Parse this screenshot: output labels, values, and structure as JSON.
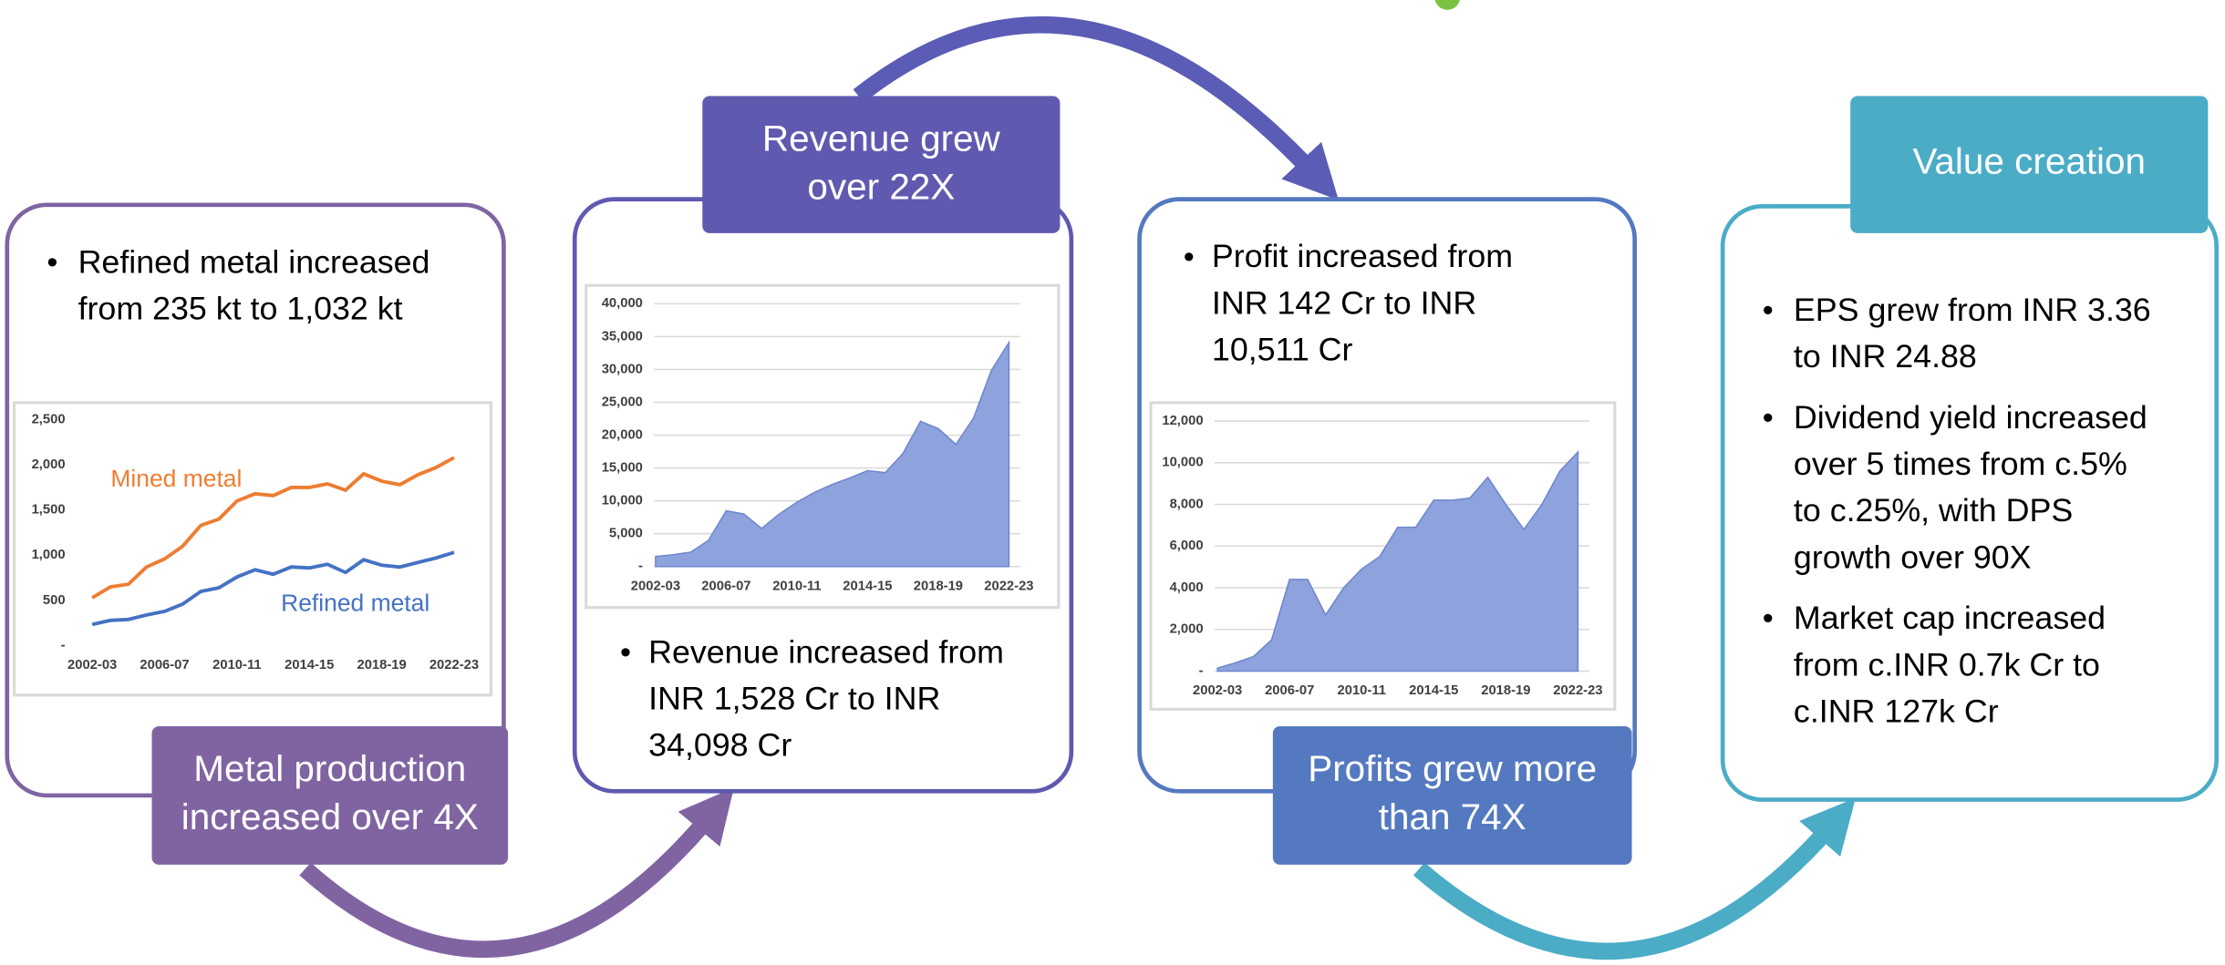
{
  "panels": [
    {
      "label": [
        "Metal production",
        "increased over 4X"
      ],
      "bullets": [
        [
          "Refined metal increased",
          "from 235 kt to 1,032 kt"
        ]
      ]
    },
    {
      "label": [
        "Revenue grew",
        "over 22X"
      ],
      "bullets": [
        [
          "Revenue increased from",
          "INR 1,528 Cr to INR",
          "34,098 Cr"
        ]
      ]
    },
    {
      "label": [
        "Profits grew more",
        "than 74X"
      ],
      "bullets": [
        [
          "Profit increased from",
          "INR 142 Cr to INR",
          "10,511 Cr"
        ]
      ]
    },
    {
      "label": [
        "Value creation"
      ],
      "bullets": [
        [
          "EPS grew from INR 3.36",
          "to INR 24.88"
        ],
        [
          "Dividend yield increased",
          "over 5 times from c.5%",
          "to c.25%, with DPS",
          "growth over 90X"
        ],
        [
          "Market cap increased",
          "from c.INR 0.7k Cr to",
          "c.INR 127k Cr"
        ]
      ]
    }
  ],
  "chart_data": [
    {
      "type": "line",
      "grid": false,
      "categories": [
        "2002-03",
        null,
        null,
        null,
        "2006-07",
        null,
        null,
        null,
        "2010-11",
        null,
        null,
        null,
        "2014-15",
        null,
        null,
        null,
        "2018-19",
        null,
        null,
        null,
        "2022-23"
      ],
      "series": [
        {
          "name": "Mined metal",
          "color": "#ed7d31",
          "values": [
            530,
            650,
            680,
            870,
            960,
            1100,
            1330,
            1400,
            1600,
            1680,
            1660,
            1750,
            1750,
            1790,
            1720,
            1900,
            1820,
            1780,
            1890,
            1970,
            2080
          ]
        },
        {
          "name": "Refined metal",
          "color": "#4472c4",
          "values": [
            235,
            280,
            290,
            340,
            380,
            460,
            600,
            640,
            760,
            840,
            790,
            870,
            860,
            900,
            810,
            950,
            890,
            870,
            920,
            970,
            1032
          ]
        }
      ],
      "ylim": [
        0,
        2500
      ],
      "yticks": [
        {
          "value": 0,
          "label": "-"
        },
        500,
        {
          "value": 1000,
          "label": "1,000"
        },
        {
          "value": 1500,
          "label": "1,500"
        },
        {
          "value": 2000,
          "label": "2,000"
        },
        {
          "value": 2500,
          "label": "2,500"
        }
      ]
    },
    {
      "type": "area",
      "grid": true,
      "color": "#8ea3dd",
      "categories": [
        "2002-03",
        null,
        null,
        null,
        "2006-07",
        null,
        null,
        null,
        "2010-11",
        null,
        null,
        null,
        "2014-15",
        null,
        null,
        null,
        "2018-19",
        null,
        null,
        null,
        "2022-23"
      ],
      "values": [
        1528,
        1800,
        2200,
        4000,
        8500,
        8000,
        5800,
        8000,
        9800,
        11300,
        12500,
        13500,
        14600,
        14300,
        17200,
        22100,
        21000,
        18600,
        22600,
        29800,
        34098
      ],
      "ylim": [
        0,
        40000
      ],
      "yticks": [
        {
          "value": 0,
          "label": "-"
        },
        {
          "value": 5000,
          "label": "5,000"
        },
        {
          "value": 10000,
          "label": "10,000"
        },
        {
          "value": 15000,
          "label": "15,000"
        },
        {
          "value": 20000,
          "label": "20,000"
        },
        {
          "value": 25000,
          "label": "25,000"
        },
        {
          "value": 30000,
          "label": "30,000"
        },
        {
          "value": 35000,
          "label": "35,000"
        },
        {
          "value": 40000,
          "label": "40,000"
        }
      ]
    },
    {
      "type": "area",
      "grid": true,
      "color": "#8ea3dd",
      "categories": [
        "2002-03",
        null,
        null,
        null,
        "2006-07",
        null,
        null,
        null,
        "2010-11",
        null,
        null,
        null,
        "2014-15",
        null,
        null,
        null,
        "2018-19",
        null,
        null,
        null,
        "2022-23"
      ],
      "values": [
        142,
        400,
        700,
        1500,
        4400,
        4400,
        2700,
        4000,
        4900,
        5500,
        6900,
        6900,
        8200,
        8200,
        8300,
        9300,
        8000,
        6800,
        8000,
        9600,
        10511
      ],
      "ylim": [
        0,
        12000
      ],
      "yticks": [
        {
          "value": 0,
          "label": "-"
        },
        {
          "value": 2000,
          "label": "2,000"
        },
        {
          "value": 4000,
          "label": "4,000"
        },
        {
          "value": 6000,
          "label": "6,000"
        },
        {
          "value": 8000,
          "label": "8,000"
        },
        {
          "value": 10000,
          "label": "10,000"
        },
        {
          "value": 12000,
          "label": "12,000"
        }
      ]
    }
  ]
}
